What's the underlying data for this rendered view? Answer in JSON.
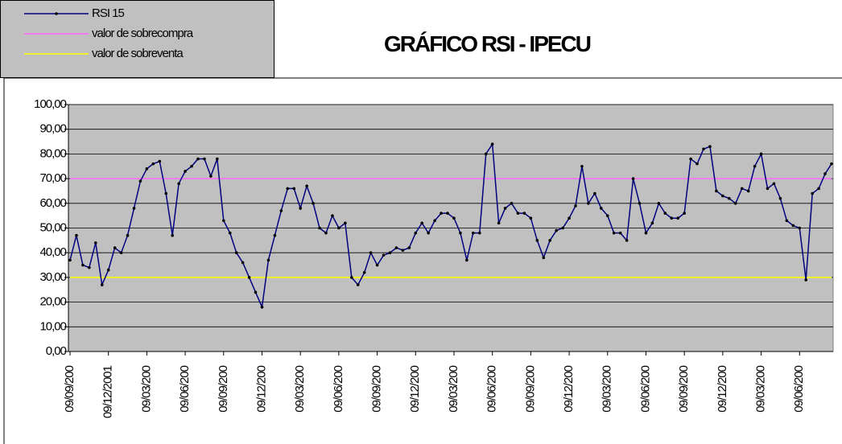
{
  "chart_data": {
    "type": "line",
    "title": "GRÁFICO RSI - IPECU",
    "categories": [
      "09/09/200",
      null,
      null,
      null,
      null,
      null,
      "09/12/2001",
      null,
      null,
      null,
      null,
      null,
      "09/03/200",
      null,
      null,
      null,
      null,
      null,
      "09/06/200",
      null,
      null,
      null,
      null,
      null,
      "09/09/200",
      null,
      null,
      null,
      null,
      null,
      "09/12/200",
      null,
      null,
      null,
      null,
      null,
      "09/03/200",
      null,
      null,
      null,
      null,
      null,
      "09/06/200",
      null,
      null,
      null,
      null,
      null,
      "09/09/200",
      null,
      null,
      null,
      null,
      null,
      "09/12/200",
      null,
      null,
      null,
      null,
      null,
      "09/03/200",
      null,
      null,
      null,
      null,
      null,
      "09/06/200",
      null,
      null,
      null,
      null,
      null,
      "09/09/200",
      null,
      null,
      null,
      null,
      null,
      "09/12/200",
      null,
      null,
      null,
      null,
      null,
      "09/03/200",
      null,
      null,
      null,
      null,
      null,
      "09/06/200",
      null,
      null,
      null,
      null,
      null,
      "09/09/200",
      null,
      null,
      null,
      null,
      null,
      "09/12/200",
      null,
      null,
      null,
      null,
      null,
      "09/03/200",
      null,
      null,
      null,
      null,
      null,
      "09/06/200",
      null,
      null,
      null,
      null,
      null
    ],
    "series": [
      {
        "name": "RSI 15",
        "color": "#000080",
        "marker": true,
        "values": [
          37,
          47,
          35,
          34,
          44,
          27,
          33,
          42,
          40,
          47,
          58,
          69,
          74,
          76,
          77,
          64,
          47,
          68,
          73,
          75,
          78,
          78,
          71,
          78,
          53,
          48,
          40,
          36,
          30,
          24,
          18,
          37,
          47,
          57,
          66,
          66,
          58,
          67,
          60,
          50,
          48,
          55,
          50,
          52,
          30,
          27,
          32,
          40,
          35,
          39,
          40,
          42,
          41,
          42,
          48,
          52,
          48,
          53,
          56,
          56,
          54,
          48,
          37,
          48,
          48,
          80,
          84,
          52,
          58,
          60,
          56,
          56,
          54,
          45,
          38,
          45,
          49,
          50,
          54,
          59,
          75,
          60,
          64,
          58,
          55,
          48,
          48,
          45,
          70,
          60,
          48,
          52,
          60,
          56,
          54,
          54,
          56,
          78,
          76,
          82,
          83,
          65,
          63,
          62,
          60,
          66,
          65,
          75,
          80,
          66,
          68,
          62,
          53,
          51,
          50,
          29,
          64,
          66,
          72,
          76
        ]
      },
      {
        "name": "valor de sobrecompra",
        "color": "#ff66ff",
        "marker": false,
        "values": [
          70,
          70,
          70,
          70,
          70,
          70,
          70,
          70,
          70,
          70,
          70,
          70,
          70,
          70,
          70,
          70,
          70,
          70,
          70,
          70,
          70,
          70,
          70,
          70,
          70,
          70,
          70,
          70,
          70,
          70,
          70,
          70,
          70,
          70,
          70,
          70,
          70,
          70,
          70,
          70,
          70,
          70,
          70,
          70,
          70,
          70,
          70,
          70,
          70,
          70,
          70,
          70,
          70,
          70,
          70,
          70,
          70,
          70,
          70,
          70,
          70,
          70,
          70,
          70,
          70,
          70,
          70,
          70,
          70,
          70,
          70,
          70,
          70,
          70,
          70,
          70,
          70,
          70,
          70,
          70,
          70,
          70,
          70,
          70,
          70,
          70,
          70,
          70,
          70,
          70,
          70,
          70,
          70,
          70,
          70,
          70,
          70,
          70,
          70,
          70,
          70,
          70,
          70,
          70,
          70,
          70,
          70,
          70,
          70,
          70,
          70,
          70,
          70,
          70,
          70,
          70,
          70,
          70,
          70,
          70
        ]
      },
      {
        "name": "valor de sobreventa",
        "color": "#ffff00",
        "marker": false,
        "values": [
          30,
          30,
          30,
          30,
          30,
          30,
          30,
          30,
          30,
          30,
          30,
          30,
          30,
          30,
          30,
          30,
          30,
          30,
          30,
          30,
          30,
          30,
          30,
          30,
          30,
          30,
          30,
          30,
          30,
          30,
          30,
          30,
          30,
          30,
          30,
          30,
          30,
          30,
          30,
          30,
          30,
          30,
          30,
          30,
          30,
          30,
          30,
          30,
          30,
          30,
          30,
          30,
          30,
          30,
          30,
          30,
          30,
          30,
          30,
          30,
          30,
          30,
          30,
          30,
          30,
          30,
          30,
          30,
          30,
          30,
          30,
          30,
          30,
          30,
          30,
          30,
          30,
          30,
          30,
          30,
          30,
          30,
          30,
          30,
          30,
          30,
          30,
          30,
          30,
          30,
          30,
          30,
          30,
          30,
          30,
          30,
          30,
          30,
          30,
          30,
          30,
          30,
          30,
          30,
          30,
          30,
          30,
          30,
          30,
          30,
          30,
          30,
          30,
          30,
          30,
          30,
          30,
          30,
          30,
          30
        ]
      }
    ],
    "ylim": [
      0,
      100
    ],
    "yticks": [
      {
        "value": 0,
        "label": "0,00"
      },
      {
        "value": 10,
        "label": "10,00"
      },
      {
        "value": 20,
        "label": "20,00"
      },
      {
        "value": 30,
        "label": "30,00"
      },
      {
        "value": 40,
        "label": "40,00"
      },
      {
        "value": 50,
        "label": "50,00"
      },
      {
        "value": 60,
        "label": "60,00"
      },
      {
        "value": 70,
        "label": "70,00"
      },
      {
        "value": 80,
        "label": "80,00"
      },
      {
        "value": 90,
        "label": "90,00"
      },
      {
        "value": 100,
        "label": "100,00"
      }
    ],
    "grid": true,
    "legend": "top-left"
  }
}
